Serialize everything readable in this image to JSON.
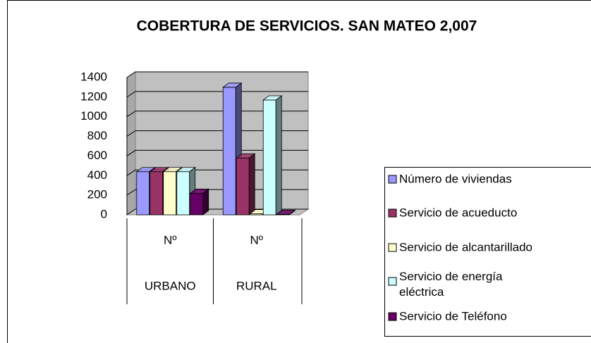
{
  "chart_data": {
    "type": "bar3d",
    "title": "COBERTURA DE SERVICIOS.  SAN MATEO 2,007",
    "categories": [
      "Nº",
      "Nº"
    ],
    "groups": [
      "URBANO",
      "RURAL"
    ],
    "series": [
      {
        "name": "Número de viviendas",
        "color": "#9999ff",
        "values": [
          440,
          1300
        ]
      },
      {
        "name": "Servicio de acueducto",
        "color": "#993366",
        "values": [
          440,
          580
        ]
      },
      {
        "name": "Servicio de alcantarillado",
        "color": "#ffffcc",
        "values": [
          440,
          10
        ]
      },
      {
        "name": "Servicio de energía eléctrica",
        "color": "#ccffff",
        "values": [
          440,
          1170
        ]
      },
      {
        "name": "Servicio de Teléfono",
        "color": "#660066",
        "values": [
          220,
          5
        ]
      }
    ],
    "ylim": [
      0,
      1400
    ],
    "yticks": [
      0,
      200,
      400,
      600,
      800,
      1000,
      1200,
      1400
    ],
    "grid": true,
    "legend": "right"
  }
}
